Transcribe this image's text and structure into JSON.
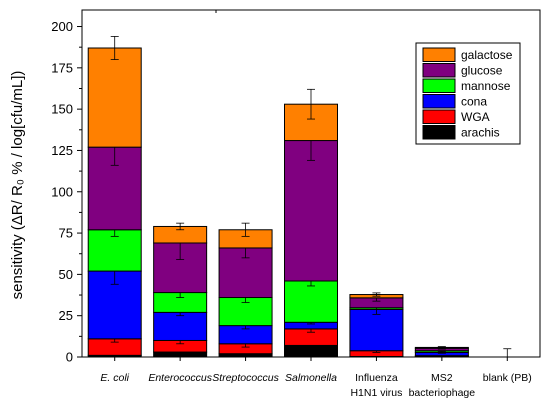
{
  "chart_data": {
    "type": "bar",
    "stacked": true,
    "title": "",
    "xlabel": "",
    "ylabel": "sensitivity (ΔR/ R₀ % / log[cfu/mL])",
    "ylim": [
      0,
      210
    ],
    "yticks": [
      0,
      25,
      50,
      75,
      100,
      125,
      150,
      175,
      200
    ],
    "legend_position": "top-right",
    "categories": [
      {
        "lines": [
          "E. coli"
        ],
        "italic": true
      },
      {
        "lines": [
          "Enterococcus"
        ],
        "italic": true
      },
      {
        "lines": [
          "Streptococcus"
        ],
        "italic": true
      },
      {
        "lines": [
          "Salmonella"
        ],
        "italic": true
      },
      {
        "lines": [
          "Influenza",
          "H1N1 virus"
        ],
        "italic": false
      },
      {
        "lines": [
          "MS2",
          "bacteriophage"
        ],
        "italic": false
      },
      {
        "lines": [
          "blank (PB)"
        ],
        "italic": false
      }
    ],
    "series": [
      {
        "name": "arachis",
        "color": "#000000",
        "values": [
          1,
          3,
          2,
          7,
          0.3,
          0.3,
          0
        ],
        "errors": [
          1,
          1,
          1,
          1.5,
          0.5,
          0.5,
          0
        ]
      },
      {
        "name": "WGA",
        "color": "#ff0000",
        "values": [
          10,
          7,
          6,
          10,
          3.5,
          0.5,
          0
        ],
        "errors": [
          2,
          2,
          2,
          2,
          1,
          0.5,
          0
        ]
      },
      {
        "name": "cona",
        "color": "#0000ff",
        "values": [
          41,
          17,
          11,
          4,
          25,
          2,
          0
        ],
        "errors": [
          8,
          2,
          2,
          1,
          3,
          0.5,
          0
        ]
      },
      {
        "name": "mannose",
        "color": "#00ff00",
        "values": [
          25,
          12,
          17,
          25,
          1,
          1,
          0
        ],
        "errors": [
          4,
          3,
          3,
          3,
          1,
          0.5,
          0
        ]
      },
      {
        "name": "glucose",
        "color": "#800080",
        "values": [
          50,
          30,
          30,
          85,
          6,
          1.5,
          0
        ],
        "errors": [
          11,
          10,
          6,
          12,
          2,
          0.5,
          0
        ]
      },
      {
        "name": "galactose",
        "color": "#ff8000",
        "values": [
          60,
          10,
          11,
          22,
          2,
          0.5,
          0
        ],
        "errors": [
          7,
          2,
          4,
          9,
          1,
          0.5,
          5
        ]
      }
    ]
  }
}
